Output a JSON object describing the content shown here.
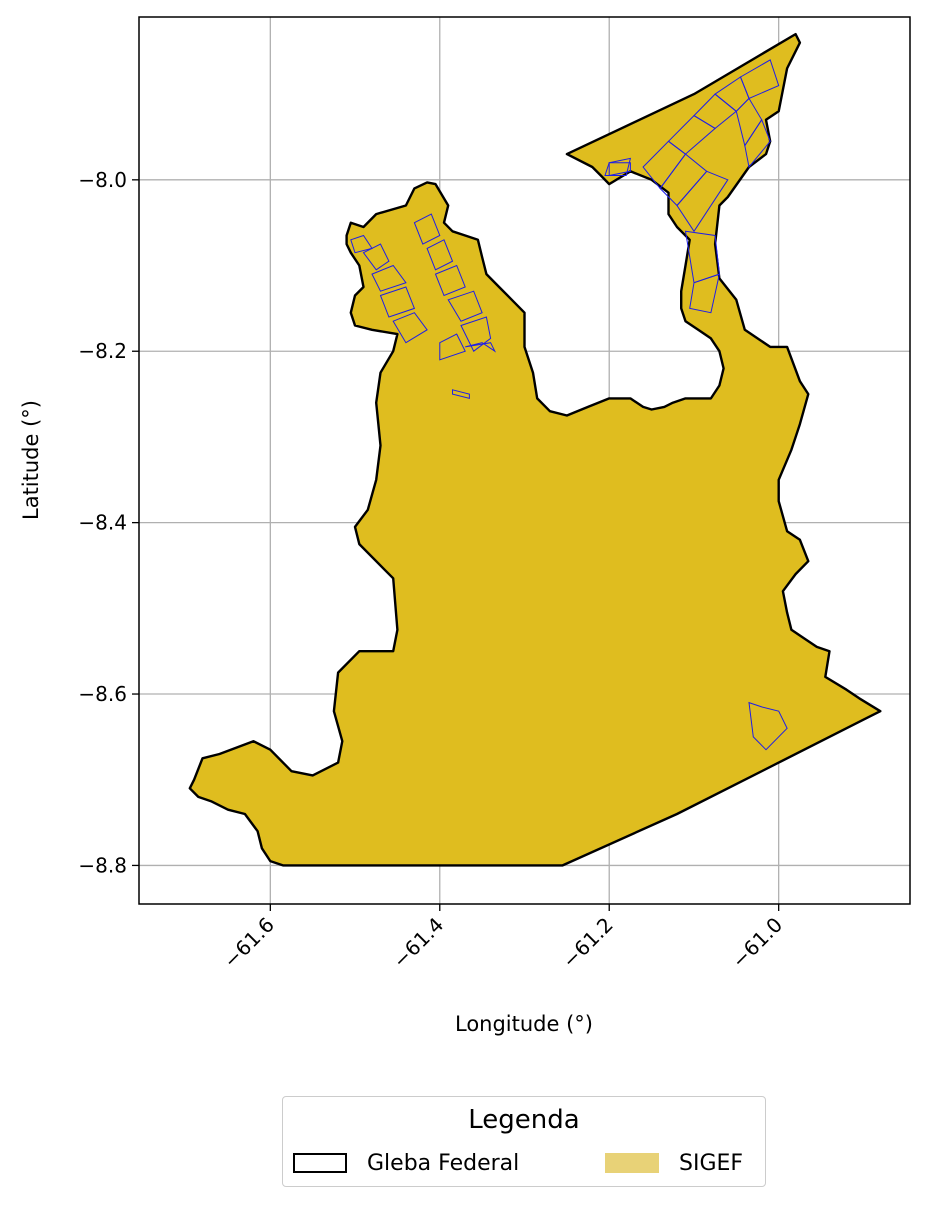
{
  "chart_data": {
    "type": "map",
    "xlabel": "Longitude (°)",
    "ylabel": "Latitude (°)",
    "xlim": [
      -61.755,
      -60.845
    ],
    "ylim": [
      -8.845,
      -7.81
    ],
    "xticks": [
      -61.6,
      -61.4,
      -61.2,
      -61.0
    ],
    "yticks": [
      -8.0,
      -8.2,
      -8.4,
      -8.6,
      -8.8
    ],
    "xtick_labels": [
      "−61.6",
      "−61.4",
      "−61.2",
      "−61.0"
    ],
    "ytick_labels": [
      "−8.0",
      "−8.2",
      "−8.4",
      "−8.6",
      "−8.8"
    ],
    "grid": true,
    "legend_placement": "bottom-center, below plot",
    "layers": [
      {
        "name": "Gleba Federal",
        "style": "outline",
        "edge_color": "#000000",
        "fill_color": "#dfbd1f"
      },
      {
        "name": "SIGEF",
        "style": "fill",
        "fill_color": "#e8d277",
        "parcel_edge_color": "#1e1ee6"
      }
    ],
    "gleba_federal_boundary": [
      [
        -61.69,
        -8.7
      ],
      [
        -61.68,
        -8.675
      ],
      [
        -61.66,
        -8.67
      ],
      [
        -61.62,
        -8.655
      ],
      [
        -61.6,
        -8.665
      ],
      [
        -61.575,
        -8.69
      ],
      [
        -61.55,
        -8.695
      ],
      [
        -61.52,
        -8.68
      ],
      [
        -61.515,
        -8.655
      ],
      [
        -61.525,
        -8.62
      ],
      [
        -61.52,
        -8.575
      ],
      [
        -61.495,
        -8.55
      ],
      [
        -61.455,
        -8.55
      ],
      [
        -61.45,
        -8.525
      ],
      [
        -61.455,
        -8.465
      ],
      [
        -61.465,
        -8.455
      ],
      [
        -61.495,
        -8.425
      ],
      [
        -61.5,
        -8.405
      ],
      [
        -61.485,
        -8.385
      ],
      [
        -61.475,
        -8.35
      ],
      [
        -61.47,
        -8.31
      ],
      [
        -61.475,
        -8.26
      ],
      [
        -61.47,
        -8.225
      ],
      [
        -61.455,
        -8.2
      ],
      [
        -61.45,
        -8.18
      ],
      [
        -61.48,
        -8.175
      ],
      [
        -61.5,
        -8.17
      ],
      [
        -61.505,
        -8.155
      ],
      [
        -61.5,
        -8.135
      ],
      [
        -61.49,
        -8.125
      ],
      [
        -61.495,
        -8.1
      ],
      [
        -61.505,
        -8.085
      ],
      [
        -61.51,
        -8.075
      ],
      [
        -61.51,
        -8.065
      ],
      [
        -61.505,
        -8.05
      ],
      [
        -61.49,
        -8.055
      ],
      [
        -61.475,
        -8.04
      ],
      [
        -61.44,
        -8.03
      ],
      [
        -61.43,
        -8.01
      ],
      [
        -61.415,
        -8.003
      ],
      [
        -61.405,
        -8.005
      ],
      [
        -61.39,
        -8.03
      ],
      [
        -61.395,
        -8.05
      ],
      [
        -61.385,
        -8.06
      ],
      [
        -61.37,
        -8.065
      ],
      [
        -61.355,
        -8.07
      ],
      [
        -61.35,
        -8.09
      ],
      [
        -61.345,
        -8.11
      ],
      [
        -61.33,
        -8.125
      ],
      [
        -61.315,
        -8.14
      ],
      [
        -61.3,
        -8.155
      ],
      [
        -61.3,
        -8.175
      ],
      [
        -61.3,
        -8.195
      ],
      [
        -61.29,
        -8.225
      ],
      [
        -61.285,
        -8.255
      ],
      [
        -61.27,
        -8.27
      ],
      [
        -61.25,
        -8.275
      ],
      [
        -61.225,
        -8.265
      ],
      [
        -61.2,
        -8.255
      ],
      [
        -61.175,
        -8.255
      ],
      [
        -61.16,
        -8.265
      ],
      [
        -61.15,
        -8.268
      ],
      [
        -61.135,
        -8.265
      ],
      [
        -61.125,
        -8.26
      ],
      [
        -61.11,
        -8.255
      ],
      [
        -61.08,
        -8.255
      ],
      [
        -61.07,
        -8.24
      ],
      [
        -61.065,
        -8.22
      ],
      [
        -61.07,
        -8.2
      ],
      [
        -61.08,
        -8.185
      ],
      [
        -61.095,
        -8.175
      ],
      [
        -61.11,
        -8.165
      ],
      [
        -61.115,
        -8.15
      ],
      [
        -61.115,
        -8.13
      ],
      [
        -61.11,
        -8.1
      ],
      [
        -61.105,
        -8.07
      ],
      [
        -61.12,
        -8.055
      ],
      [
        -61.13,
        -8.04
      ],
      [
        -61.13,
        -8.015
      ],
      [
        -61.15,
        -8.0
      ],
      [
        -61.175,
        -7.99
      ],
      [
        -61.2,
        -8.005
      ],
      [
        -61.21,
        -7.995
      ],
      [
        -61.22,
        -7.985
      ],
      [
        -61.25,
        -7.97
      ],
      [
        -61.1,
        -7.9
      ],
      [
        -60.98,
        -7.83
      ],
      [
        -60.975,
        -7.84
      ],
      [
        -60.99,
        -7.87
      ],
      [
        -61.0,
        -7.92
      ],
      [
        -61.015,
        -7.93
      ],
      [
        -61.01,
        -7.955
      ],
      [
        -61.015,
        -7.97
      ],
      [
        -61.035,
        -7.985
      ],
      [
        -61.06,
        -8.02
      ],
      [
        -61.07,
        -8.03
      ],
      [
        -61.075,
        -8.075
      ],
      [
        -61.07,
        -8.115
      ],
      [
        -61.05,
        -8.14
      ],
      [
        -61.04,
        -8.175
      ],
      [
        -61.01,
        -8.195
      ],
      [
        -60.99,
        -8.195
      ],
      [
        -60.975,
        -8.235
      ],
      [
        -60.965,
        -8.25
      ],
      [
        -60.975,
        -8.285
      ],
      [
        -60.985,
        -8.315
      ],
      [
        -61.0,
        -8.35
      ],
      [
        -61.0,
        -8.375
      ],
      [
        -60.99,
        -8.41
      ],
      [
        -60.975,
        -8.42
      ],
      [
        -60.965,
        -8.445
      ],
      [
        -60.98,
        -8.46
      ],
      [
        -60.995,
        -8.48
      ],
      [
        -60.99,
        -8.505
      ],
      [
        -60.985,
        -8.525
      ],
      [
        -60.955,
        -8.545
      ],
      [
        -60.94,
        -8.55
      ],
      [
        -60.945,
        -8.58
      ],
      [
        -60.92,
        -8.595
      ],
      [
        -60.905,
        -8.605
      ],
      [
        -60.88,
        -8.62
      ],
      [
        -60.9,
        -8.63
      ],
      [
        -61.0,
        -8.68
      ],
      [
        -61.12,
        -8.74
      ],
      [
        -61.255,
        -8.8
      ],
      [
        -61.31,
        -8.8
      ],
      [
        -61.45,
        -8.8
      ],
      [
        -61.585,
        -8.8
      ],
      [
        -61.6,
        -8.795
      ],
      [
        -61.61,
        -8.78
      ],
      [
        -61.615,
        -8.76
      ],
      [
        -61.63,
        -8.74
      ],
      [
        -61.65,
        -8.735
      ],
      [
        -61.67,
        -8.725
      ],
      [
        -61.685,
        -8.72
      ],
      [
        -61.695,
        -8.71
      ]
    ],
    "sigef_parcels": [
      [
        [
          -61.505,
          -8.07
        ],
        [
          -61.49,
          -8.065
        ],
        [
          -61.48,
          -8.08
        ],
        [
          -61.5,
          -8.085
        ]
      ],
      [
        [
          -61.49,
          -8.085
        ],
        [
          -61.47,
          -8.075
        ],
        [
          -61.46,
          -8.095
        ],
        [
          -61.475,
          -8.105
        ]
      ],
      [
        [
          -61.48,
          -8.11
        ],
        [
          -61.455,
          -8.1
        ],
        [
          -61.44,
          -8.12
        ],
        [
          -61.47,
          -8.13
        ]
      ],
      [
        [
          -61.47,
          -8.135
        ],
        [
          -61.44,
          -8.125
        ],
        [
          -61.43,
          -8.15
        ],
        [
          -61.46,
          -8.16
        ]
      ],
      [
        [
          -61.455,
          -8.165
        ],
        [
          -61.43,
          -8.155
        ],
        [
          -61.415,
          -8.175
        ],
        [
          -61.44,
          -8.19
        ]
      ],
      [
        [
          -61.43,
          -8.05
        ],
        [
          -61.41,
          -8.04
        ],
        [
          -61.4,
          -8.065
        ],
        [
          -61.42,
          -8.075
        ]
      ],
      [
        [
          -61.415,
          -8.08
        ],
        [
          -61.395,
          -8.07
        ],
        [
          -61.385,
          -8.095
        ],
        [
          -61.405,
          -8.105
        ]
      ],
      [
        [
          -61.405,
          -8.11
        ],
        [
          -61.38,
          -8.1
        ],
        [
          -61.37,
          -8.125
        ],
        [
          -61.395,
          -8.135
        ]
      ],
      [
        [
          -61.39,
          -8.14
        ],
        [
          -61.36,
          -8.13
        ],
        [
          -61.35,
          -8.155
        ],
        [
          -61.375,
          -8.165
        ]
      ],
      [
        [
          -61.375,
          -8.17
        ],
        [
          -61.345,
          -8.16
        ],
        [
          -61.34,
          -8.185
        ],
        [
          -61.36,
          -8.2
        ]
      ],
      [
        [
          -61.4,
          -8.19
        ],
        [
          -61.38,
          -8.18
        ],
        [
          -61.37,
          -8.2
        ],
        [
          -61.4,
          -8.21
        ]
      ],
      [
        [
          -61.37,
          -8.195
        ],
        [
          -61.35,
          -8.19
        ],
        [
          -61.335,
          -8.2
        ],
        [
          -61.34,
          -8.19
        ]
      ],
      [
        [
          -61.385,
          -8.245
        ],
        [
          -61.365,
          -8.25
        ],
        [
          -61.365,
          -8.255
        ],
        [
          -61.385,
          -8.25
        ]
      ],
      [
        [
          -61.2,
          -7.98
        ],
        [
          -61.175,
          -7.975
        ],
        [
          -61.18,
          -7.995
        ],
        [
          -61.205,
          -7.995
        ]
      ],
      [
        [
          -61.2,
          -7.995
        ],
        [
          -61.175,
          -7.99
        ],
        [
          -61.175,
          -7.98
        ],
        [
          -61.2,
          -7.98
        ]
      ],
      [
        [
          -61.16,
          -7.985
        ],
        [
          -61.13,
          -7.955
        ],
        [
          -61.11,
          -7.97
        ],
        [
          -61.14,
          -8.01
        ]
      ],
      [
        [
          -61.14,
          -8.01
        ],
        [
          -61.11,
          -7.97
        ],
        [
          -61.085,
          -7.99
        ],
        [
          -61.12,
          -8.03
        ]
      ],
      [
        [
          -61.12,
          -8.03
        ],
        [
          -61.085,
          -7.99
        ],
        [
          -61.06,
          -8.0
        ],
        [
          -61.1,
          -8.06
        ]
      ],
      [
        [
          -61.13,
          -7.955
        ],
        [
          -61.1,
          -7.925
        ],
        [
          -61.075,
          -7.94
        ],
        [
          -61.11,
          -7.97
        ]
      ],
      [
        [
          -61.1,
          -7.925
        ],
        [
          -61.075,
          -7.9
        ],
        [
          -61.05,
          -7.92
        ],
        [
          -61.075,
          -7.94
        ]
      ],
      [
        [
          -61.075,
          -7.9
        ],
        [
          -61.045,
          -7.88
        ],
        [
          -61.035,
          -7.905
        ],
        [
          -61.05,
          -7.92
        ]
      ],
      [
        [
          -61.045,
          -7.88
        ],
        [
          -61.01,
          -7.86
        ],
        [
          -61.0,
          -7.89
        ],
        [
          -61.035,
          -7.905
        ]
      ],
      [
        [
          -61.05,
          -7.92
        ],
        [
          -61.035,
          -7.905
        ],
        [
          -61.02,
          -7.93
        ],
        [
          -61.04,
          -7.96
        ]
      ],
      [
        [
          -61.04,
          -7.96
        ],
        [
          -61.02,
          -7.93
        ],
        [
          -61.01,
          -7.955
        ],
        [
          -61.035,
          -7.985
        ]
      ],
      [
        [
          -61.11,
          -8.06
        ],
        [
          -61.075,
          -8.065
        ],
        [
          -61.07,
          -8.11
        ],
        [
          -61.1,
          -8.12
        ]
      ],
      [
        [
          -61.1,
          -8.12
        ],
        [
          -61.07,
          -8.11
        ],
        [
          -61.08,
          -8.155
        ],
        [
          -61.105,
          -8.15
        ]
      ],
      [
        [
          -61.035,
          -8.61
        ],
        [
          -61.02,
          -8.615
        ],
        [
          -61.0,
          -8.62
        ],
        [
          -60.99,
          -8.64
        ],
        [
          -61.015,
          -8.665
        ],
        [
          -61.03,
          -8.65
        ]
      ]
    ]
  }
}
